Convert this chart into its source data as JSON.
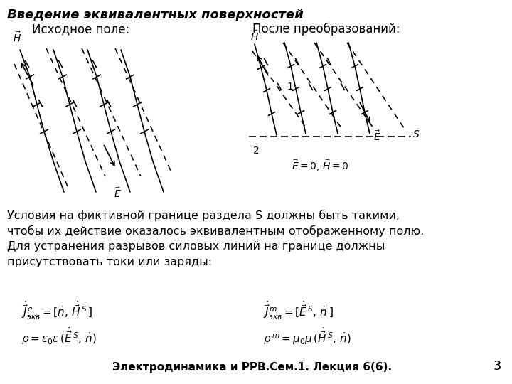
{
  "title_bold_italic": "Введение эквивалентных поверхностей",
  "subtitle_left": "Исходное поле:",
  "subtitle_right": "После преобразований:",
  "body_line1": "Условия на фиктивной границе раздела S должны быть такими,",
  "body_line2": "чтобы их действие оказалось эквивалентным отображенному полю.",
  "body_line3": "Для устранения разрывов силовых линий на границе должны",
  "body_line4": "присутствовать токи или заряды:",
  "footer": "Электродинамика и РРВ.Сем.1. Лекция 6(6).",
  "page_number": "3",
  "bg_color": "#ffffff",
  "text_color": "#000000"
}
